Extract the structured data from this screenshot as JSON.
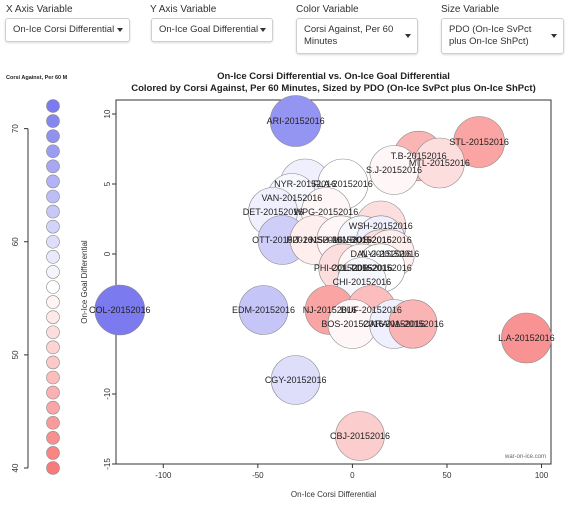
{
  "controls": {
    "x_axis": {
      "label": "X Axis Variable",
      "value": "On-Ice Corsi Differential"
    },
    "y_axis": {
      "label": "Y Axis Variable",
      "value": "On-Ice Goal Differential"
    },
    "color": {
      "label": "Color Variable",
      "value": "Corsi Against, Per 60 Minutes"
    },
    "size": {
      "label": "Size Variable",
      "value": "PDO (On-Ice SvPct plus On-Ice ShPct)"
    }
  },
  "legend": {
    "title": "Corsi Against, Per 60 M",
    "range": [
      40,
      72
    ],
    "ticks": [
      40,
      50,
      60,
      70
    ],
    "low_color": "#f87a7a",
    "mid_color": "#ffffff",
    "high_color": "#7b7bef"
  },
  "watermark": "war-on-ice.com",
  "chart_data": {
    "type": "scatter",
    "title": "On-Ice Corsi Differential vs. On-Ice Goal Differential",
    "subtitle": "Colored by Corsi Against, Per 60 Minutes, Sized by PDO (On-Ice SvPct plus On-Ice ShPct)",
    "xlabel": "On-Ice Corsi Differential",
    "ylabel": "On-Ice Goal Differential",
    "xlim": [
      -125,
      105
    ],
    "ylim": [
      -15,
      11
    ],
    "xticks": [
      -100,
      -50,
      0,
      50,
      100
    ],
    "yticks": [
      -15,
      -10,
      -5,
      0,
      5,
      10
    ],
    "points": [
      {
        "label": "ARI-20152016",
        "x": -30,
        "y": 9.5,
        "color": 69,
        "size": 0.55
      },
      {
        "label": "STL-20152016",
        "x": 67,
        "y": 8,
        "color": 45,
        "size": 0.55
      },
      {
        "label": "T.B-20152016",
        "x": 35,
        "y": 7,
        "color": 47,
        "size": 0.48
      },
      {
        "label": "MTL-20152016",
        "x": 46,
        "y": 6.5,
        "color": 52,
        "size": 0.5
      },
      {
        "label": "S.J-20152016",
        "x": 22,
        "y": 6,
        "color": 55,
        "size": 0.45
      },
      {
        "label": "NYR-20152016",
        "x": -25,
        "y": 5,
        "color": 58,
        "size": 0.5
      },
      {
        "label": "FLA-20152016",
        "x": -5,
        "y": 5,
        "color": 56,
        "size": 0.5
      },
      {
        "label": "VAN-20152016",
        "x": -32,
        "y": 4,
        "color": 57,
        "size": 0.45
      },
      {
        "label": "DET-20152016",
        "x": -42,
        "y": 3,
        "color": 58,
        "size": 0.45
      },
      {
        "label": "WPG-20152016",
        "x": -14,
        "y": 3,
        "color": 55,
        "size": 0.45
      },
      {
        "label": "WSH-20152016",
        "x": 15,
        "y": 2,
        "color": 52,
        "size": 0.5
      },
      {
        "label": "OTT-20152016",
        "x": -37,
        "y": 1,
        "color": 62,
        "size": 0.45
      },
      {
        "label": "PIT-20152016",
        "x": -20,
        "y": 1,
        "color": 54,
        "size": 0.45
      },
      {
        "label": "NSH-20152016",
        "x": -6,
        "y": 1,
        "color": 55,
        "size": 0.42
      },
      {
        "label": "MIN-20152016",
        "x": 5,
        "y": 1,
        "color": 57,
        "size": 0.42
      },
      {
        "label": "BOS-20152016",
        "x": 15,
        "y": 1,
        "color": 58,
        "size": 0.42
      },
      {
        "label": "DAL-20152016",
        "x": 15,
        "y": 0,
        "color": 52,
        "size": 0.42
      },
      {
        "label": "NYI-20152016",
        "x": 20,
        "y": 0,
        "color": 54,
        "size": 0.42
      },
      {
        "label": "PHI-20152016",
        "x": -5,
        "y": -1,
        "color": 52,
        "size": 0.42
      },
      {
        "label": "COL-20152016",
        "x": 5,
        "y": -1,
        "color": 55,
        "size": 0.4
      },
      {
        "label": "TOR-20152016",
        "x": 15,
        "y": -1,
        "color": 56,
        "size": 0.42
      },
      {
        "label": "CHI-20152016",
        "x": 5,
        "y": -2,
        "color": 57,
        "size": 0.45
      },
      {
        "label": "COL-20152016",
        "x": -123,
        "y": -4,
        "color": 72,
        "size": 0.5
      },
      {
        "label": "EDM-20152016",
        "x": -47,
        "y": -4,
        "color": 63,
        "size": 0.45
      },
      {
        "label": "NJ-20152016",
        "x": -12,
        "y": -4,
        "color": 45,
        "size": 0.45
      },
      {
        "label": "BUF-20152016",
        "x": 10,
        "y": -4,
        "color": 48,
        "size": 0.45
      },
      {
        "label": "BOS-20152016",
        "x": 0,
        "y": -5,
        "color": 55,
        "size": 0.45
      },
      {
        "label": "CAR-20152016",
        "x": 22,
        "y": -5,
        "color": 58,
        "size": 0.45
      },
      {
        "label": "ANA-20152016",
        "x": 32,
        "y": -5,
        "color": 47,
        "size": 0.42
      },
      {
        "label": "L.A-20152016",
        "x": 92,
        "y": -6,
        "color": 43,
        "size": 0.5
      },
      {
        "label": "CGY-20152016",
        "x": -30,
        "y": -9,
        "color": 60,
        "size": 0.45
      },
      {
        "label": "CBJ-20152016",
        "x": 4,
        "y": -13,
        "color": 50,
        "size": 0.45
      }
    ]
  }
}
